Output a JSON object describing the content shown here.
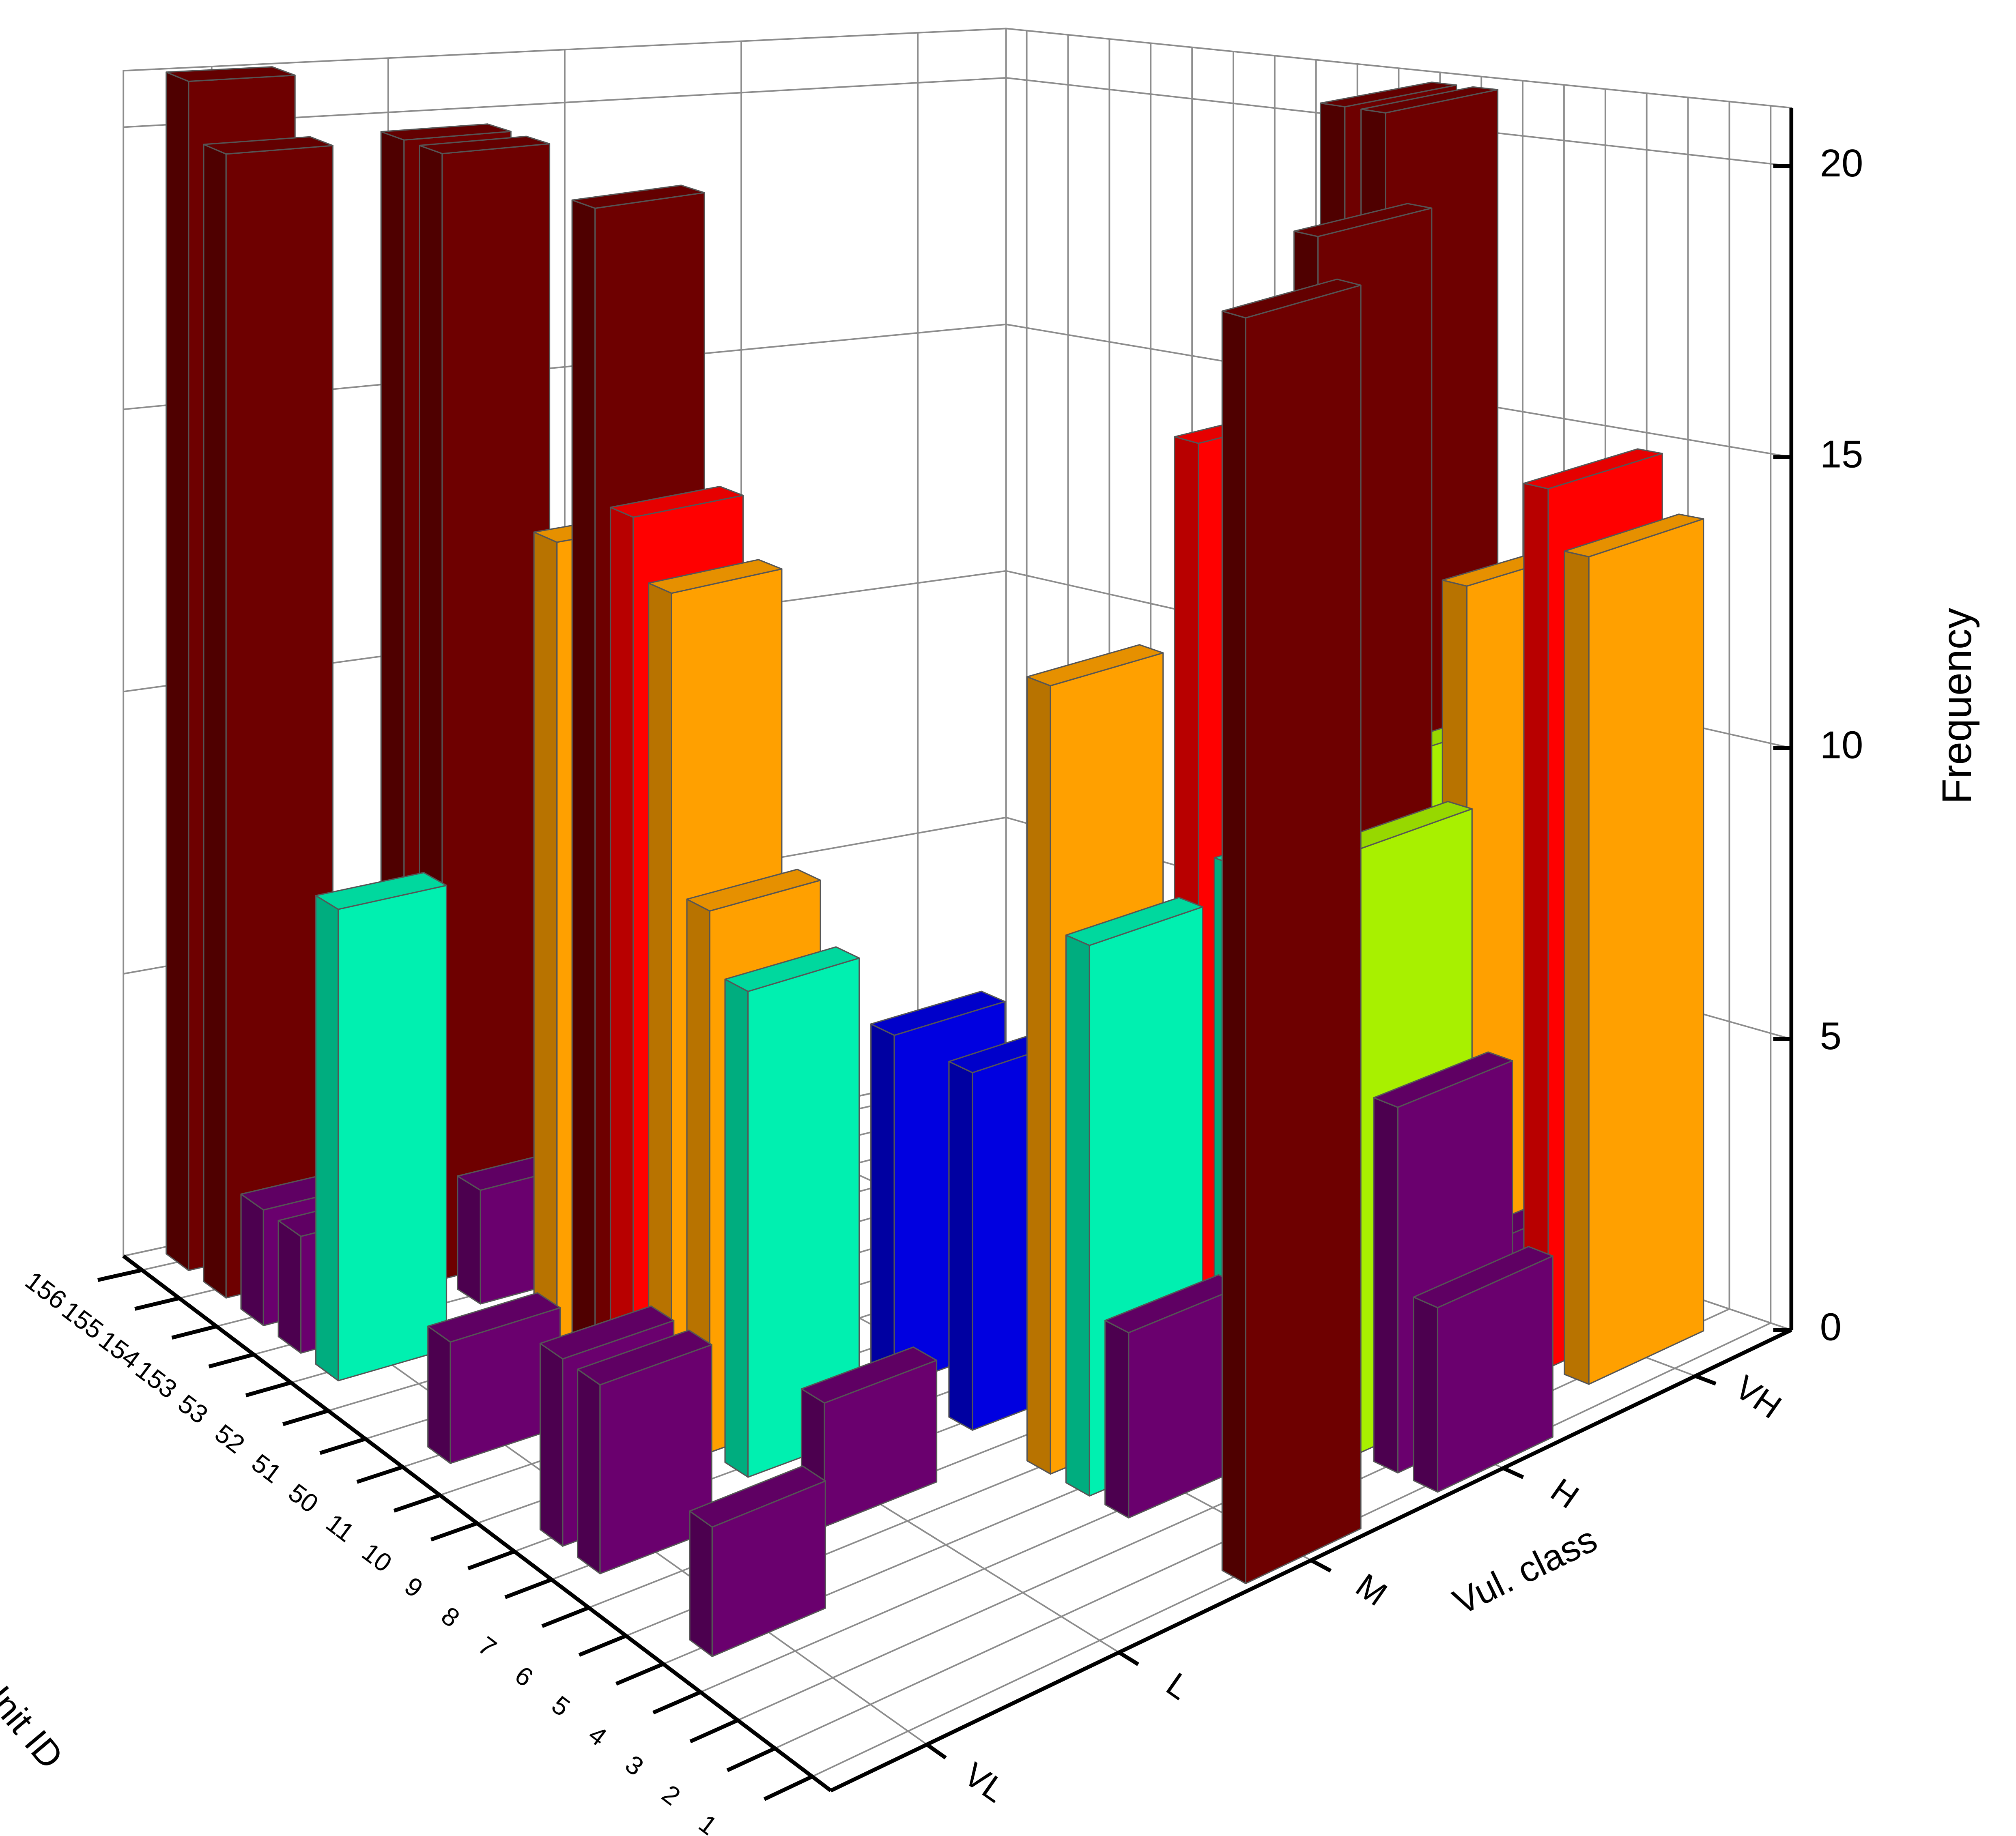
{
  "chart_data": {
    "type": "bar3d",
    "x_label": "Statistical Unit ID",
    "y_label": "Vul. class",
    "z_label": "Frequency",
    "categories": [
      "1",
      "2",
      "3",
      "4",
      "5",
      "6",
      "7",
      "8",
      "9",
      "10",
      "11",
      "50",
      "51",
      "52",
      "53",
      "153",
      "154",
      "155",
      "156"
    ],
    "series": [
      {
        "name": "VL",
        "values": [
          null,
          null,
          null,
          null,
          2,
          null,
          null,
          3,
          3,
          null,
          null,
          2,
          null,
          null,
          8,
          2,
          2,
          20,
          21
        ],
        "colors": [
          null,
          null,
          null,
          null,
          "#6a006e",
          null,
          null,
          "#6a006e",
          "#6a006e",
          null,
          null,
          "#6a006e",
          null,
          null,
          "#00f0b0",
          "#6a006e",
          "#6a006e",
          "#6e0000",
          "#6e0000"
        ]
      },
      {
        "name": "L",
        "values": [
          null,
          null,
          null,
          null,
          null,
          null,
          2,
          null,
          8,
          9,
          14,
          15,
          20,
          14,
          null,
          2,
          20,
          20,
          null
        ],
        "colors": [
          null,
          null,
          null,
          null,
          null,
          null,
          "#6a006e",
          null,
          "#00f0b0",
          "#ffa000",
          "#ffa000",
          "#ff0000",
          "#6e0000",
          "#ffa000",
          null,
          "#6a006e",
          "#6e0000",
          "#6e0000",
          null
        ]
      },
      {
        "name": "M",
        "values": [
          20,
          null,
          null,
          3,
          9,
          13,
          null,
          6,
          null,
          6,
          null,
          null,
          null,
          null,
          null,
          null,
          null,
          null,
          null
        ],
        "colors": [
          "#6e0000",
          null,
          null,
          "#6a006e",
          "#00f0b0",
          "#ffa000",
          null,
          "#0000e0",
          null,
          "#0000e0",
          null,
          null,
          null,
          null,
          null,
          null,
          null,
          null,
          null
        ]
      },
      {
        "name": "H",
        "values": [
          3,
          6,
          10,
          20,
          null,
          9,
          16,
          2,
          null,
          null,
          null,
          null,
          null,
          null,
          null,
          null,
          null,
          null,
          null
        ],
        "colors": [
          "#6a006e",
          "#6a006e",
          "#a8f000",
          "#6e0000",
          null,
          "#00f0b0",
          "#ff0000",
          "#6a006e",
          null,
          null,
          null,
          null,
          null,
          null,
          null,
          null,
          null,
          null,
          null
        ]
      },
      {
        "name": "VH",
        "values": [
          null,
          14,
          15,
          2,
          13,
          10,
          21,
          21,
          4,
          7,
          null,
          null,
          null,
          null,
          null,
          null,
          null,
          null,
          null
        ],
        "colors": [
          null,
          "#ffa000",
          "#ff0000",
          "#6a006e",
          "#ffa000",
          "#a8f000",
          "#6e0000",
          "#6e0000",
          "#0000e0",
          "#00f0b0",
          null,
          null,
          null,
          null,
          null,
          null,
          null,
          null,
          null
        ]
      }
    ],
    "zlim": [
      0,
      21
    ],
    "zticks": [
      0,
      5,
      10,
      15,
      20
    ],
    "grid": true
  }
}
